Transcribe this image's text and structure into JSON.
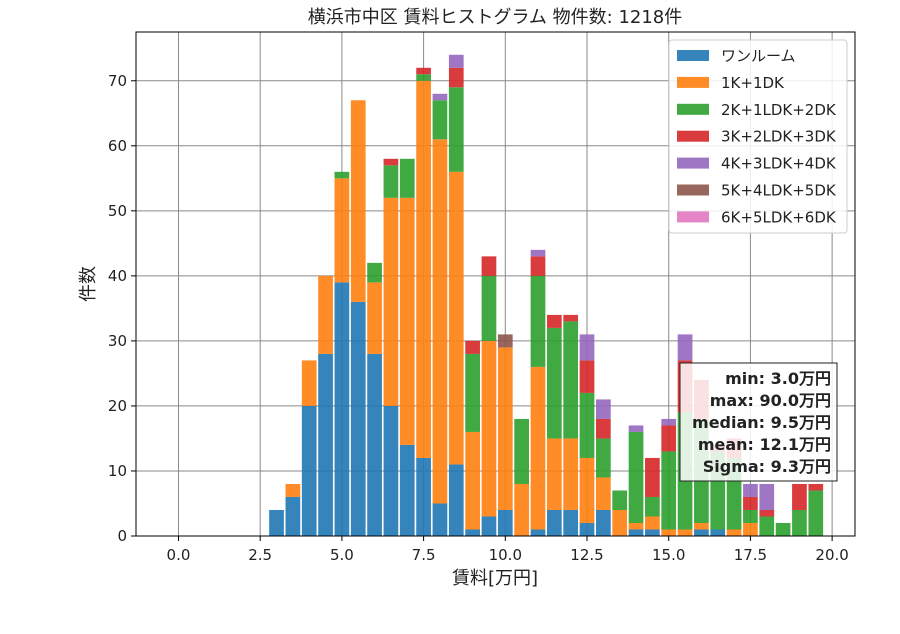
{
  "chart_data": {
    "type": "bar",
    "stacked": true,
    "title": "横浜市中区 賃料ヒストグラム  物件数: 1218件",
    "xlabel": "賃料[万円]",
    "ylabel": "件数",
    "xlim": [
      -1.3,
      20.7
    ],
    "ylim": [
      0,
      77.5
    ],
    "x_ticks": [
      0.0,
      2.5,
      5.0,
      7.5,
      10.0,
      12.5,
      15.0,
      17.5,
      20.0
    ],
    "x_tick_labels": [
      "0.0",
      "2.5",
      "5.0",
      "7.5",
      "10.0",
      "12.5",
      "15.0",
      "17.5",
      "20.0"
    ],
    "y_ticks": [
      0,
      10,
      20,
      30,
      40,
      50,
      60,
      70
    ],
    "y_tick_labels": [
      "0",
      "10",
      "20",
      "30",
      "40",
      "50",
      "60",
      "70"
    ],
    "grid": true,
    "legend_position": "top-right",
    "bin_width": 0.5,
    "x": [
      3.0,
      3.5,
      4.0,
      4.5,
      5.0,
      5.5,
      6.0,
      6.5,
      7.0,
      7.5,
      8.0,
      8.5,
      9.0,
      9.5,
      10.0,
      10.5,
      11.0,
      11.5,
      12.0,
      12.5,
      13.0,
      13.5,
      14.0,
      14.5,
      15.0,
      15.5,
      16.0,
      16.5,
      17.0,
      17.5,
      18.0,
      18.5,
      19.0,
      19.5
    ],
    "series": [
      {
        "name": "ワンルーム",
        "color": "#1f77b4",
        "values": [
          4,
          6,
          20,
          28,
          39,
          36,
          28,
          20,
          14,
          12,
          5,
          11,
          1,
          3,
          4,
          0,
          1,
          4,
          4,
          2,
          4,
          0,
          1,
          1,
          0,
          0,
          1,
          1,
          0,
          0,
          0,
          0,
          0,
          0
        ]
      },
      {
        "name": "1K+1DK",
        "color": "#ff7f0e",
        "values": [
          0,
          2,
          7,
          12,
          16,
          31,
          11,
          32,
          38,
          58,
          56,
          45,
          15,
          27,
          25,
          8,
          25,
          11,
          11,
          10,
          5,
          4,
          1,
          2,
          1,
          1,
          1,
          0,
          1,
          2,
          0,
          0,
          0,
          0
        ]
      },
      {
        "name": "2K+1LDK+2DK",
        "color": "#2ca02c",
        "values": [
          0,
          0,
          0,
          0,
          1,
          0,
          3,
          5,
          6,
          1,
          6,
          13,
          12,
          10,
          0,
          10,
          14,
          17,
          18,
          10,
          6,
          3,
          14,
          3,
          12,
          18,
          16,
          12,
          11,
          2,
          3,
          2,
          4,
          7
        ]
      },
      {
        "name": "3K+2LDK+3DK",
        "color": "#d62728",
        "values": [
          0,
          0,
          0,
          0,
          0,
          0,
          0,
          1,
          0,
          1,
          0,
          3,
          2,
          3,
          0,
          0,
          3,
          2,
          1,
          5,
          3,
          0,
          0,
          6,
          4,
          8,
          6,
          1,
          3,
          2,
          1,
          0,
          4,
          1
        ]
      },
      {
        "name": "4K+3LDK+4DK",
        "color": "#9467bd",
        "values": [
          0,
          0,
          0,
          0,
          0,
          0,
          0,
          0,
          0,
          0,
          1,
          2,
          0,
          0,
          0,
          0,
          1,
          0,
          0,
          4,
          3,
          0,
          1,
          0,
          1,
          4,
          0,
          0,
          0,
          2,
          4,
          0,
          0,
          0
        ]
      },
      {
        "name": "5K+4LDK+5DK",
        "color": "#8c564b",
        "values": [
          0,
          0,
          0,
          0,
          0,
          0,
          0,
          0,
          0,
          0,
          0,
          0,
          0,
          0,
          2,
          0,
          0,
          0,
          0,
          0,
          0,
          0,
          0,
          0,
          0,
          0,
          0,
          0,
          0,
          0,
          0,
          0,
          0,
          0
        ]
      },
      {
        "name": "6K+5LDK+6DK",
        "color": "#e377c2",
        "values": [
          0,
          0,
          0,
          0,
          0,
          0,
          0,
          0,
          0,
          0,
          0,
          0,
          0,
          0,
          0,
          0,
          0,
          0,
          0,
          0,
          0,
          0,
          0,
          0,
          0,
          0,
          0,
          0,
          0,
          0,
          0,
          0,
          0,
          0
        ]
      }
    ],
    "stats_box": [
      "min: 3.0万円",
      "max: 90.0万円",
      "median: 9.5万円",
      "mean: 12.1万円",
      "Sigma: 9.3万円"
    ]
  }
}
